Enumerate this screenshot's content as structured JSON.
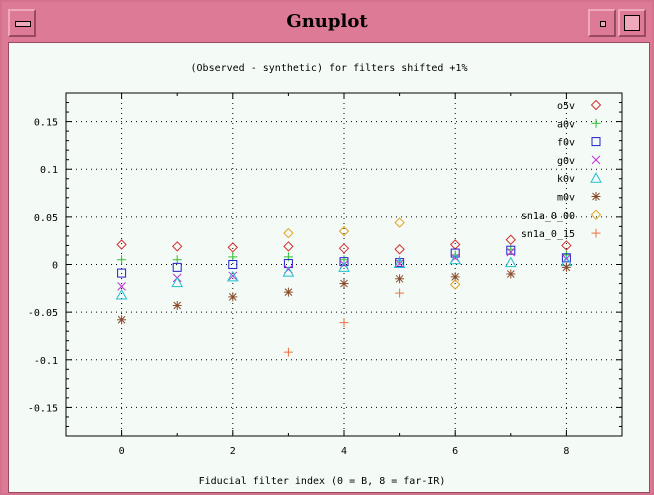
{
  "window": {
    "title": "Gnuplot"
  },
  "chart_data": {
    "type": "scatter",
    "title": "(Observed - synthetic) for filters shifted +1%",
    "xlabel": "Fiducial filter index (0 = B, 8 = far-IR)",
    "ylabel": "",
    "xlim": [
      -1,
      9
    ],
    "ylim": [
      -0.18,
      0.18
    ],
    "x_ticks": [
      0,
      2,
      4,
      6,
      8
    ],
    "y_ticks": [
      0.15,
      0.1,
      0.05,
      0,
      -0.05,
      -0.1,
      -0.15
    ],
    "y_tick_labels": [
      "0.15",
      "0.1",
      "0.05",
      "0",
      "-0.05",
      "-0.1",
      "-0.15"
    ],
    "grid": true,
    "legend_position": "top-right",
    "series": [
      {
        "name": "o5v",
        "color": "#d43030",
        "marker": "diamond",
        "points": [
          [
            0,
            0.021
          ],
          [
            1,
            0.019
          ],
          [
            2,
            0.018
          ],
          [
            3,
            0.019
          ],
          [
            4,
            0.017
          ],
          [
            5,
            0.016
          ],
          [
            6,
            0.021
          ],
          [
            7,
            0.026
          ],
          [
            8,
            0.02
          ]
        ]
      },
      {
        "name": "a0v",
        "color": "#30c030",
        "marker": "plus",
        "points": [
          [
            0,
            0.005
          ],
          [
            1,
            0.005
          ],
          [
            2,
            0.008
          ],
          [
            3,
            0.008
          ],
          [
            4,
            0.005
          ],
          [
            5,
            0.004
          ],
          [
            6,
            0.01
          ],
          [
            7,
            0.016
          ],
          [
            8,
            0.01
          ]
        ]
      },
      {
        "name": "f0v",
        "color": "#2020d0",
        "marker": "square",
        "points": [
          [
            0,
            -0.009
          ],
          [
            1,
            -0.003
          ],
          [
            2,
            0.0
          ],
          [
            3,
            0.001
          ],
          [
            4,
            0.003
          ],
          [
            5,
            0.002
          ],
          [
            6,
            0.012
          ],
          [
            7,
            0.015
          ],
          [
            8,
            0.007
          ]
        ]
      },
      {
        "name": "g0v",
        "color": "#c030d0",
        "marker": "cross",
        "points": [
          [
            0,
            -0.023
          ],
          [
            1,
            -0.014
          ],
          [
            2,
            -0.012
          ],
          [
            3,
            -0.005
          ],
          [
            4,
            0.0
          ],
          [
            5,
            0.001
          ],
          [
            6,
            0.007
          ],
          [
            7,
            0.013
          ],
          [
            8,
            0.006
          ]
        ]
      },
      {
        "name": "k0v",
        "color": "#20c0d0",
        "marker": "triangle",
        "points": [
          [
            0,
            -0.032
          ],
          [
            1,
            -0.019
          ],
          [
            2,
            -0.013
          ],
          [
            3,
            -0.008
          ],
          [
            4,
            -0.003
          ],
          [
            5,
            0.001
          ],
          [
            6,
            0.005
          ],
          [
            7,
            0.002
          ],
          [
            8,
            0.003
          ]
        ]
      },
      {
        "name": "m0v",
        "color": "#8a4a2a",
        "marker": "star",
        "points": [
          [
            0,
            -0.058
          ],
          [
            1,
            -0.043
          ],
          [
            2,
            -0.034
          ],
          [
            3,
            -0.029
          ],
          [
            4,
            -0.02
          ],
          [
            5,
            -0.015
          ],
          [
            6,
            -0.013
          ],
          [
            7,
            -0.01
          ],
          [
            8,
            -0.003
          ]
        ]
      },
      {
        "name": "sn1a_0_00",
        "color": "#e0a020",
        "marker": "diamond",
        "points": [
          [
            3,
            0.033
          ],
          [
            4,
            0.035
          ],
          [
            5,
            0.044
          ],
          [
            6,
            -0.021
          ]
        ]
      },
      {
        "name": "sn1a_0_15",
        "color": "#f07040",
        "marker": "plus",
        "points": [
          [
            3,
            -0.092
          ],
          [
            4,
            -0.061
          ],
          [
            5,
            -0.03
          ]
        ]
      }
    ]
  }
}
